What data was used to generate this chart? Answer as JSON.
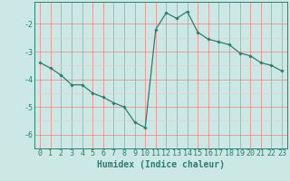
{
  "x": [
    0,
    1,
    2,
    3,
    4,
    5,
    6,
    7,
    8,
    9,
    10,
    11,
    12,
    13,
    14,
    15,
    16,
    17,
    18,
    19,
    20,
    21,
    22,
    23
  ],
  "y": [
    -3.4,
    -3.6,
    -3.85,
    -4.2,
    -4.2,
    -4.5,
    -4.65,
    -4.85,
    -5.0,
    -5.55,
    -5.75,
    -2.2,
    -1.6,
    -1.8,
    -1.55,
    -2.3,
    -2.55,
    -2.65,
    -2.75,
    -3.05,
    -3.15,
    -3.4,
    -3.5,
    -3.7
  ],
  "line_color": "#2e7d6e",
  "marker": "D",
  "marker_size": 1.8,
  "line_width": 0.9,
  "bg_color": "#cce8e4",
  "grid_major_color": "#f08080",
  "grid_minor_color": "#e8c8c8",
  "axes_color": "#2e7d6e",
  "xlabel": "Humidex (Indice chaleur)",
  "xlabel_fontsize": 7,
  "yticks": [
    -6,
    -5,
    -4,
    -3,
    -2
  ],
  "xtick_labels": [
    "0",
    "1",
    "2",
    "3",
    "4",
    "5",
    "6",
    "7",
    "8",
    "9",
    "10",
    "11",
    "12",
    "13",
    "14",
    "15",
    "16",
    "17",
    "18",
    "19",
    "20",
    "21",
    "22",
    "23"
  ],
  "xlim": [
    -0.5,
    23.5
  ],
  "ylim": [
    -6.5,
    -1.2
  ],
  "tick_fontsize": 6,
  "tick_color": "#2e7d6e",
  "spine_color": "#2e7d6e"
}
